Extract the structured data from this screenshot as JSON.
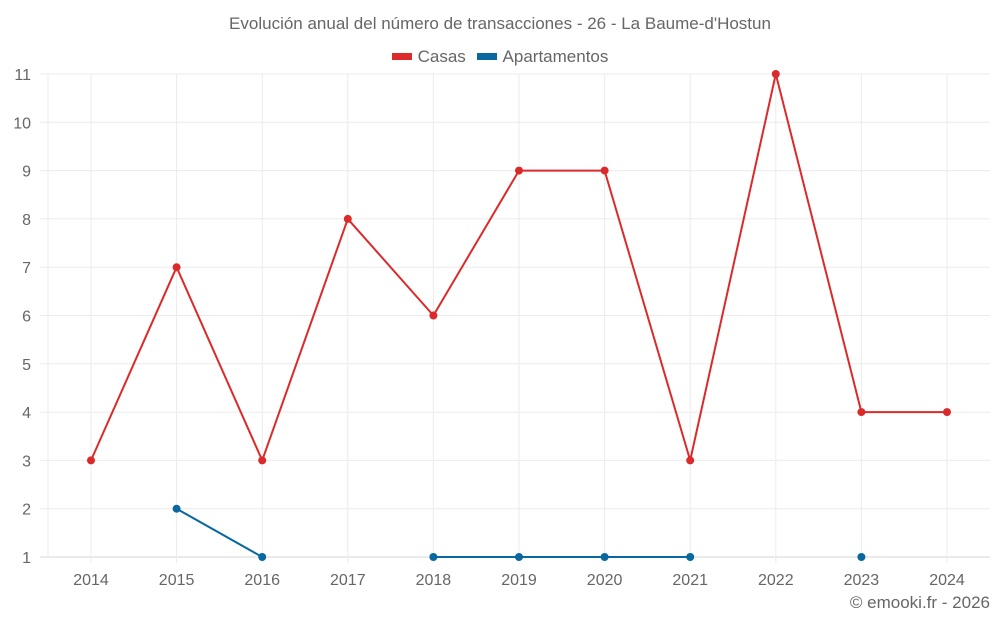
{
  "title": "Evolución anual del número de transacciones - 26 - La Baume-d'Hostun",
  "legend": [
    {
      "label": "Casas",
      "color": "#dc2a2a"
    },
    {
      "label": "Apartamentos",
      "color": "#0a68a0"
    }
  ],
  "footer": "© emooki.fr - 2026",
  "chart_data": {
    "type": "line",
    "title": "Evolución anual del número de transacciones - 26 - La Baume-d'Hostun",
    "xlabel": "",
    "ylabel": "",
    "categories": [
      "2014",
      "2015",
      "2016",
      "2017",
      "2018",
      "2019",
      "2020",
      "2021",
      "2022",
      "2023",
      "2024"
    ],
    "series": [
      {
        "name": "Casas",
        "color": "#dc2a2a",
        "values": [
          3,
          7,
          3,
          8,
          6,
          9,
          9,
          3,
          11,
          4,
          4
        ]
      },
      {
        "name": "Apartamentos",
        "color": "#0a68a0",
        "values": [
          null,
          2,
          1,
          null,
          1,
          1,
          1,
          1,
          null,
          1,
          null
        ]
      }
    ],
    "yticks": [
      1,
      2,
      3,
      4,
      5,
      6,
      7,
      8,
      9,
      10,
      11
    ],
    "ylim": [
      1,
      11
    ],
    "grid": true,
    "legend_position": "top"
  }
}
